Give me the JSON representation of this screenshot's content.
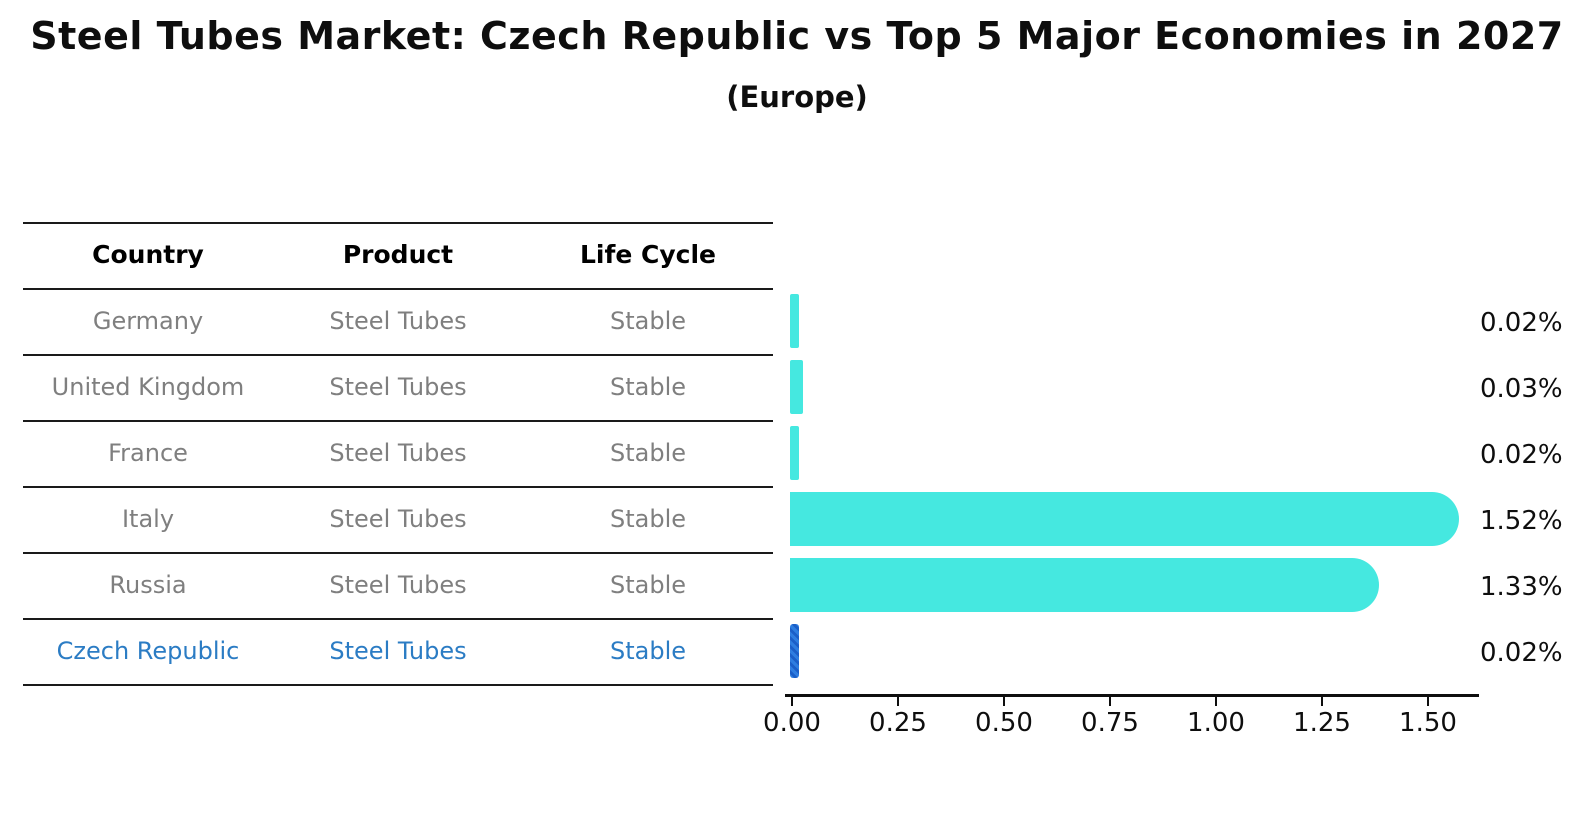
{
  "chart": {
    "title": "Steel Tubes Market: Czech Republic vs Top 5 Major Economies in 2027",
    "subtitle": "(Europe)"
  },
  "table": {
    "headers": {
      "country": "Country",
      "product": "Product",
      "life_cycle": "Life Cycle"
    },
    "rows": [
      {
        "country": "Germany",
        "product": "Steel Tubes",
        "life_cycle": "Stable",
        "highlight": false
      },
      {
        "country": "United Kingdom",
        "product": "Steel Tubes",
        "life_cycle": "Stable",
        "highlight": false
      },
      {
        "country": "France",
        "product": "Steel Tubes",
        "life_cycle": "Stable",
        "highlight": false
      },
      {
        "country": "Italy",
        "product": "Steel Tubes",
        "life_cycle": "Stable",
        "highlight": false
      },
      {
        "country": "Russia",
        "product": "Steel Tubes",
        "life_cycle": "Stable",
        "highlight": false
      },
      {
        "country": "Czech Republic",
        "product": "Steel Tubes",
        "life_cycle": "Stable",
        "highlight": true
      }
    ]
  },
  "chart_data": {
    "type": "bar",
    "orientation": "horizontal",
    "title": "Steel Tubes Market: Czech Republic vs Top 5 Major Economies in 2027",
    "subtitle": "(Europe)",
    "categories": [
      "Germany",
      "United Kingdom",
      "France",
      "Italy",
      "Russia",
      "Czech Republic"
    ],
    "values": [
      0.02,
      0.03,
      0.02,
      1.52,
      1.33,
      0.02
    ],
    "value_labels": [
      "0.02%",
      "0.03%",
      "0.02%",
      "1.52%",
      "1.33%",
      "0.02%"
    ],
    "x_tick_labels": [
      "0.00",
      "0.25",
      "0.50",
      "0.75",
      "1.00",
      "1.25",
      "1.50"
    ],
    "xlim": [
      0,
      1.62
    ],
    "grid": false,
    "legend": false,
    "bar_color": "#45e8e0",
    "highlight_bar_color": "#2e7de0",
    "highlight_text_color": "#2b7cc4",
    "row_text_color": "#7f7f7f",
    "highlight_index": 5
  }
}
